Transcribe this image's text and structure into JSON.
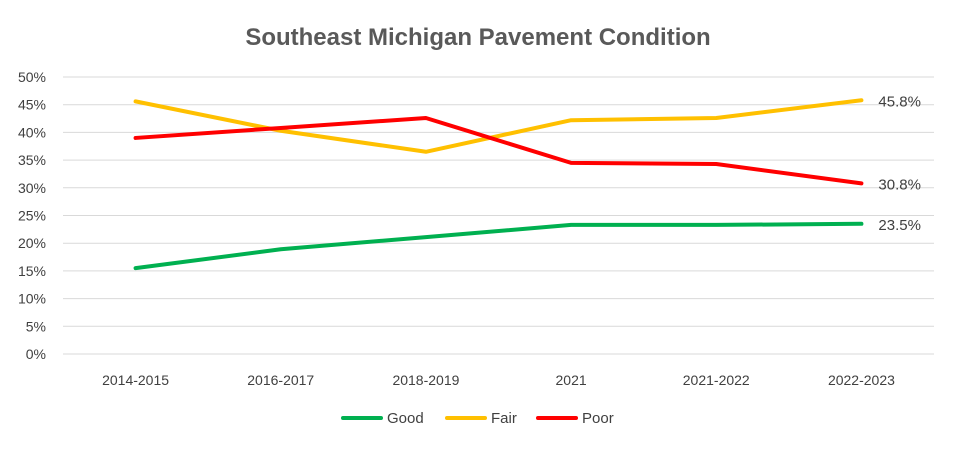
{
  "chart_data": {
    "type": "line",
    "title": "Southeast Michigan Pavement Condition",
    "xlabel": "",
    "ylabel": "",
    "categories": [
      "2014-2015",
      "2016-2017",
      "2018-2019",
      "2021",
      "2021-2022",
      "2022-2023"
    ],
    "ylim": [
      0,
      0.5
    ],
    "y_ticks": [
      "0%",
      "5%",
      "10%",
      "15%",
      "20%",
      "25%",
      "30%",
      "35%",
      "40%",
      "45%",
      "50%"
    ],
    "grid": true,
    "legend_position": "bottom",
    "series": [
      {
        "name": "Good",
        "color": "#00b050",
        "values": [
          0.155,
          0.189,
          0.211,
          0.233,
          0.233,
          0.235
        ],
        "end_label": "23.5%"
      },
      {
        "name": "Fair",
        "color": "#ffc000",
        "values": [
          0.456,
          0.403,
          0.365,
          0.422,
          0.426,
          0.458
        ],
        "end_label": "45.8%"
      },
      {
        "name": "Poor",
        "color": "#ff0000",
        "values": [
          0.39,
          0.408,
          0.426,
          0.345,
          0.343,
          0.308
        ],
        "end_label": "30.8%"
      }
    ]
  }
}
